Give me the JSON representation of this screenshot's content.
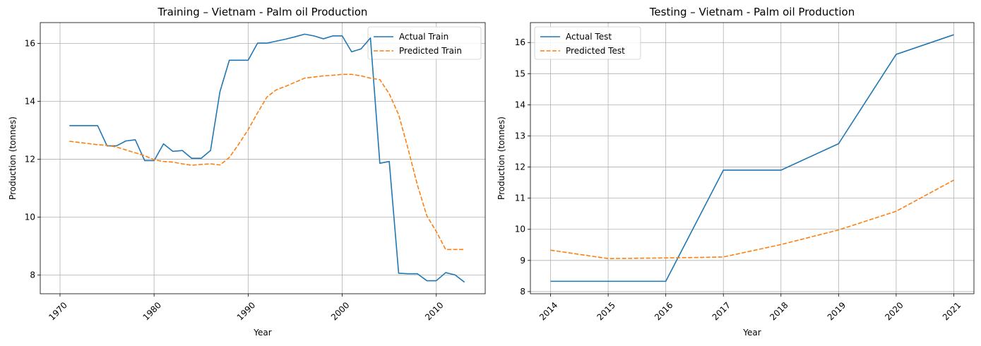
{
  "chart_data": [
    {
      "type": "line",
      "title": "Training – Vietnam - Palm oil Production",
      "xlabel": "Year",
      "ylabel": "Production (tonnes)",
      "xlim": [
        1967.9,
        2015.2
      ],
      "ylim": [
        7.35,
        16.72
      ],
      "xticks": [
        1970,
        1980,
        1990,
        2000,
        2010
      ],
      "yticks": [
        8,
        10,
        12,
        14,
        16
      ],
      "grid": true,
      "legend_position": "upper right",
      "series": [
        {
          "name": "Actual Train",
          "color": "#1f77b4",
          "dash": "solid",
          "x": [
            1971,
            1972,
            1973,
            1974,
            1975,
            1976,
            1977,
            1978,
            1979,
            1980,
            1981,
            1982,
            1983,
            1984,
            1985,
            1986,
            1987,
            1988,
            1989,
            1990,
            1991,
            1992,
            1993,
            1994,
            1995,
            1996,
            1997,
            1998,
            1999,
            2000,
            2001,
            2002,
            2003,
            2004,
            2005,
            2006,
            2007,
            2008,
            2009,
            2010,
            2011,
            2012,
            2013
          ],
          "y": [
            13.16,
            13.16,
            13.16,
            13.16,
            12.46,
            12.46,
            12.63,
            12.67,
            11.95,
            11.95,
            12.53,
            12.27,
            12.3,
            12.03,
            12.03,
            12.3,
            14.33,
            15.42,
            15.42,
            15.42,
            16.01,
            16.01,
            16.08,
            16.15,
            16.23,
            16.32,
            16.26,
            16.16,
            16.26,
            16.26,
            15.71,
            15.81,
            16.19,
            11.86,
            11.92,
            8.06,
            8.04,
            8.04,
            7.8,
            7.8,
            8.08,
            8.0,
            7.75
          ]
        },
        {
          "name": "Predicted Train",
          "color": "#ff7f0e",
          "dash": "dashed",
          "x": [
            1971,
            1972,
            1973,
            1974,
            1975,
            1976,
            1977,
            1978,
            1979,
            1980,
            1981,
            1982,
            1983,
            1984,
            1985,
            1986,
            1987,
            1988,
            1989,
            1990,
            1991,
            1992,
            1993,
            1994,
            1995,
            1996,
            1997,
            1998,
            1999,
            2000,
            2001,
            2002,
            2003,
            2004,
            2005,
            2006,
            2007,
            2008,
            2009,
            2010,
            2011,
            2012,
            2013
          ],
          "y": [
            12.62,
            12.58,
            12.54,
            12.5,
            12.48,
            12.42,
            12.32,
            12.22,
            12.12,
            11.98,
            11.92,
            11.9,
            11.84,
            11.79,
            11.82,
            11.84,
            11.8,
            12.06,
            12.52,
            13.02,
            13.6,
            14.15,
            14.4,
            14.52,
            14.66,
            14.8,
            14.84,
            14.88,
            14.9,
            14.93,
            14.93,
            14.88,
            14.8,
            14.75,
            14.26,
            13.54,
            12.36,
            11.1,
            10.04,
            9.5,
            8.88,
            8.88,
            8.88
          ]
        }
      ]
    },
    {
      "type": "line",
      "title": "Testing – Vietnam - Palm oil Production",
      "xlabel": "Year",
      "ylabel": "Production (tonnes)",
      "xlim": [
        2013.65,
        2021.35
      ],
      "ylim": [
        7.93,
        16.64
      ],
      "xticks": [
        2014,
        2015,
        2016,
        2017,
        2018,
        2019,
        2020,
        2021
      ],
      "yticks": [
        8,
        9,
        10,
        11,
        12,
        13,
        14,
        15,
        16
      ],
      "grid": true,
      "legend_position": "upper left",
      "series": [
        {
          "name": "Actual Test",
          "color": "#1f77b4",
          "dash": "solid",
          "x": [
            2014,
            2015,
            2016,
            2017,
            2018,
            2019,
            2020,
            2021
          ],
          "y": [
            8.33,
            8.33,
            8.33,
            11.9,
            11.9,
            12.75,
            15.62,
            16.25
          ]
        },
        {
          "name": "Predicted Test",
          "color": "#ff7f0e",
          "dash": "dashed",
          "x": [
            2014,
            2015,
            2016,
            2017,
            2018,
            2019,
            2020,
            2021
          ],
          "y": [
            9.33,
            9.06,
            9.08,
            9.11,
            9.51,
            9.98,
            10.58,
            11.58
          ]
        }
      ]
    }
  ]
}
